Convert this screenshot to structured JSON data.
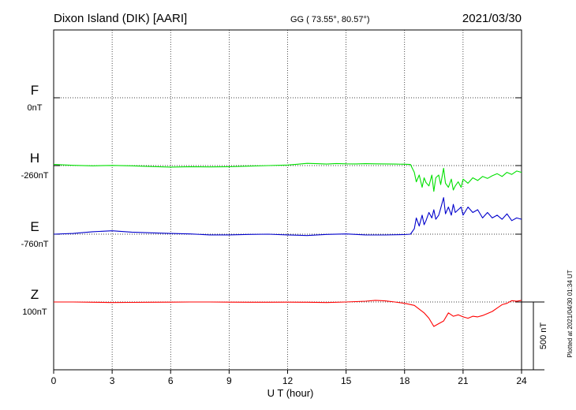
{
  "header": {
    "station": "Dixon Island (DIK)  [AARI]",
    "coords": "GG ( 73.55°,  80.57°)",
    "date": "2021/03/30"
  },
  "footer": {
    "plotted": "Plotted at 2021/04/30 01:34 UT"
  },
  "chart_data": {
    "type": "line",
    "xlabel": "U T (hour)",
    "xlim": [
      0,
      24
    ],
    "xticks": [
      "0",
      "3",
      "6",
      "9",
      "12",
      "15",
      "18",
      "21",
      "24"
    ],
    "scale_bar_label": "500 nT",
    "scale_bar_nT": 500,
    "series": [
      {
        "name": "F",
        "baseline_label": "0nT",
        "color": "#f5a300",
        "x": [],
        "y": []
      },
      {
        "name": "H",
        "baseline_label": "-260nT",
        "color": "#00e000",
        "x": [
          0,
          1,
          2,
          3,
          4,
          5,
          6,
          7,
          8,
          9,
          10,
          11,
          12,
          12.5,
          13,
          13.5,
          14,
          14.5,
          15,
          15.5,
          16,
          16.5,
          17,
          17.5,
          18,
          18.3,
          18.5,
          18.6,
          18.75,
          18.9,
          19.0,
          19.1,
          19.25,
          19.4,
          19.5,
          19.6,
          19.75,
          19.85,
          20.0,
          20.1,
          20.25,
          20.4,
          20.5,
          20.6,
          20.75,
          20.9,
          21.0,
          21.25,
          21.5,
          21.75,
          22.0,
          22.25,
          22.5,
          22.75,
          23.0,
          23.25,
          23.5,
          23.75,
          24.0
        ],
        "y": [
          -252,
          -258,
          -262,
          -259,
          -262,
          -267,
          -271,
          -268,
          -270,
          -268,
          -264,
          -260,
          -256,
          -250,
          -244,
          -246,
          -249,
          -245,
          -247,
          -248,
          -246,
          -247,
          -248,
          -249,
          -250,
          -252,
          -310,
          -380,
          -330,
          -420,
          -350,
          -385,
          -410,
          -330,
          -450,
          -350,
          -330,
          -400,
          -280,
          -390,
          -420,
          -360,
          -440,
          -410,
          -380,
          -420,
          -360,
          -390,
          -350,
          -370,
          -340,
          -355,
          -335,
          -320,
          -340,
          -310,
          -325,
          -300,
          -310
        ]
      },
      {
        "name": "E",
        "baseline_label": "-760nT",
        "color": "#0000cc",
        "x": [
          0,
          1,
          2,
          3,
          4,
          5,
          6,
          7,
          8,
          9,
          10,
          11,
          12,
          13,
          14,
          15,
          16,
          17,
          18,
          18.3,
          18.5,
          18.6,
          18.75,
          18.9,
          19.0,
          19.1,
          19.25,
          19.4,
          19.5,
          19.6,
          19.75,
          19.85,
          20.0,
          20.1,
          20.25,
          20.4,
          20.5,
          20.6,
          20.75,
          20.9,
          21.0,
          21.25,
          21.5,
          21.75,
          22.0,
          22.25,
          22.5,
          22.75,
          23.0,
          23.25,
          23.5,
          23.75,
          24.0
        ],
        "y": [
          -760,
          -755,
          -742,
          -735,
          -745,
          -750,
          -755,
          -758,
          -765,
          -765,
          -762,
          -760,
          -765,
          -770,
          -762,
          -758,
          -765,
          -766,
          -763,
          -760,
          -720,
          -640,
          -700,
          -620,
          -690,
          -660,
          -600,
          -640,
          -580,
          -650,
          -620,
          -570,
          -490,
          -610,
          -560,
          -620,
          -540,
          -600,
          -580,
          -560,
          -620,
          -560,
          -600,
          -580,
          -640,
          -600,
          -640,
          -620,
          -650,
          -610,
          -660,
          -640,
          -650
        ]
      },
      {
        "name": "Z",
        "baseline_label": "100nT",
        "color": "#ff0000",
        "x": [
          0,
          1,
          2,
          3,
          4,
          5,
          6,
          7,
          8,
          9,
          10,
          11,
          12,
          13,
          14,
          15,
          16,
          16.5,
          17,
          17.5,
          18,
          18.5,
          19.0,
          19.25,
          19.5,
          19.75,
          20.0,
          20.25,
          20.5,
          20.75,
          21.0,
          21.25,
          21.5,
          21.75,
          22.0,
          22.25,
          22.5,
          22.75,
          23.0,
          23.25,
          23.5,
          23.75,
          24.0
        ],
        "y": [
          100,
          100,
          98,
          96,
          97,
          98,
          99,
          100,
          100,
          99,
          98,
          98,
          99,
          98,
          96,
          100,
          106,
          112,
          108,
          100,
          90,
          75,
          20,
          -20,
          -80,
          -60,
          -40,
          20,
          -5,
          5,
          -10,
          -20,
          -5,
          -10,
          0,
          15,
          30,
          55,
          80,
          90,
          110,
          105,
          112
        ]
      }
    ]
  }
}
